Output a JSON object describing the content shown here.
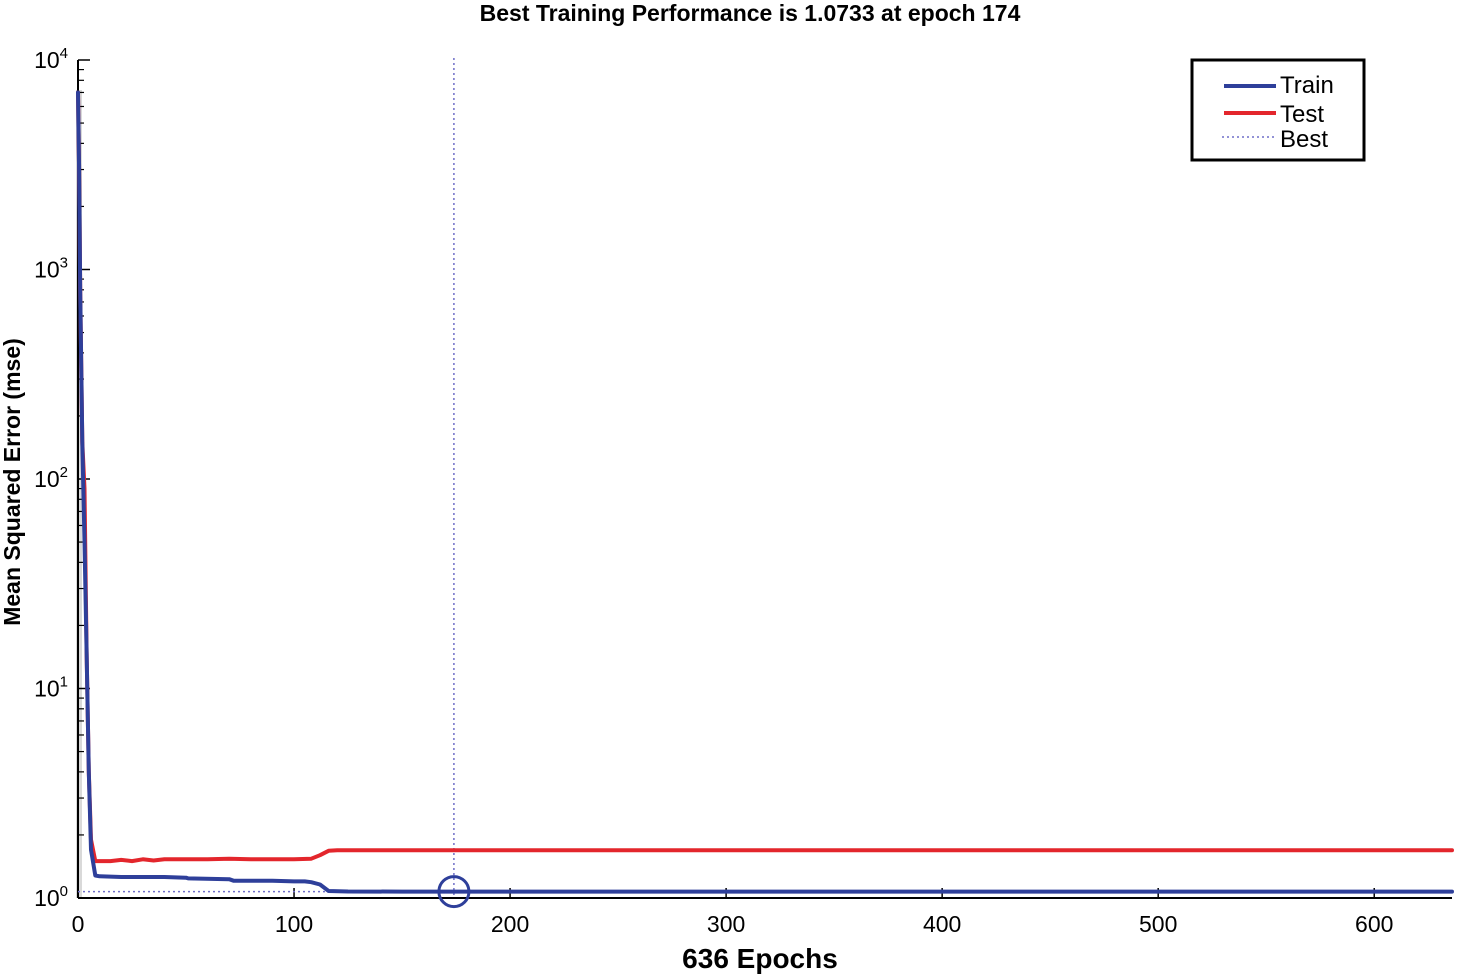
{
  "colors": {
    "train": "#2e3f9a",
    "test": "#e3262c",
    "best": "#6e6ec8",
    "axis": "#000000",
    "background": "#ffffff"
  },
  "chart_data": {
    "type": "line",
    "title": "Best Training Performance is 1.0733 at epoch 174",
    "xlabel": "636 Epochs",
    "ylabel": "Mean Squared Error  (mse)",
    "xscale": "linear",
    "yscale": "log",
    "xlim": [
      0,
      636
    ],
    "ylim": [
      1,
      10000
    ],
    "grid": false,
    "legend_position": "top-right",
    "x_ticks": [
      0,
      100,
      200,
      300,
      400,
      500,
      600
    ],
    "x_tick_labels": [
      "0",
      "100",
      "200",
      "300",
      "400",
      "500",
      "600"
    ],
    "y_ticks": [
      1,
      10,
      100,
      1000,
      10000
    ],
    "y_tick_labels": [
      {
        "base": "10",
        "exp": "0"
      },
      {
        "base": "10",
        "exp": "1"
      },
      {
        "base": "10",
        "exp": "2"
      },
      {
        "base": "10",
        "exp": "3"
      },
      {
        "base": "10",
        "exp": "4"
      }
    ],
    "series": [
      {
        "name": "Train",
        "style": "solid",
        "x": [
          0,
          0.5,
          1,
          2,
          3,
          4,
          5,
          6,
          8,
          10,
          20,
          30,
          40,
          50,
          51,
          70,
          72,
          90,
          100,
          105,
          108,
          112,
          116,
          125,
          150,
          174,
          200,
          300,
          400,
          500,
          600,
          636
        ],
        "y": [
          7000,
          3000,
          800,
          150,
          50,
          15,
          4,
          1.7,
          1.28,
          1.27,
          1.26,
          1.26,
          1.26,
          1.25,
          1.24,
          1.23,
          1.21,
          1.21,
          1.2,
          1.2,
          1.19,
          1.16,
          1.08,
          1.074,
          1.0733,
          1.0733,
          1.0733,
          1.0733,
          1.0733,
          1.0733,
          1.0733,
          1.0733
        ]
      },
      {
        "name": "Test",
        "style": "solid",
        "x": [
          0,
          0.5,
          1,
          2,
          3,
          4,
          5,
          6,
          8,
          10,
          15,
          20,
          25,
          30,
          35,
          40,
          60,
          70,
          80,
          90,
          100,
          108,
          112,
          116,
          120,
          150,
          200,
          300,
          400,
          500,
          600,
          636
        ],
        "y": [
          7000,
          3000,
          800,
          150,
          90,
          15,
          4,
          1.9,
          1.5,
          1.5,
          1.5,
          1.52,
          1.5,
          1.53,
          1.51,
          1.53,
          1.53,
          1.54,
          1.53,
          1.53,
          1.53,
          1.54,
          1.6,
          1.68,
          1.69,
          1.69,
          1.69,
          1.69,
          1.69,
          1.69,
          1.69,
          1.69
        ]
      },
      {
        "name": "Best",
        "style": "dotted",
        "best_epoch": 174,
        "best_value": 1.0733
      }
    ]
  }
}
